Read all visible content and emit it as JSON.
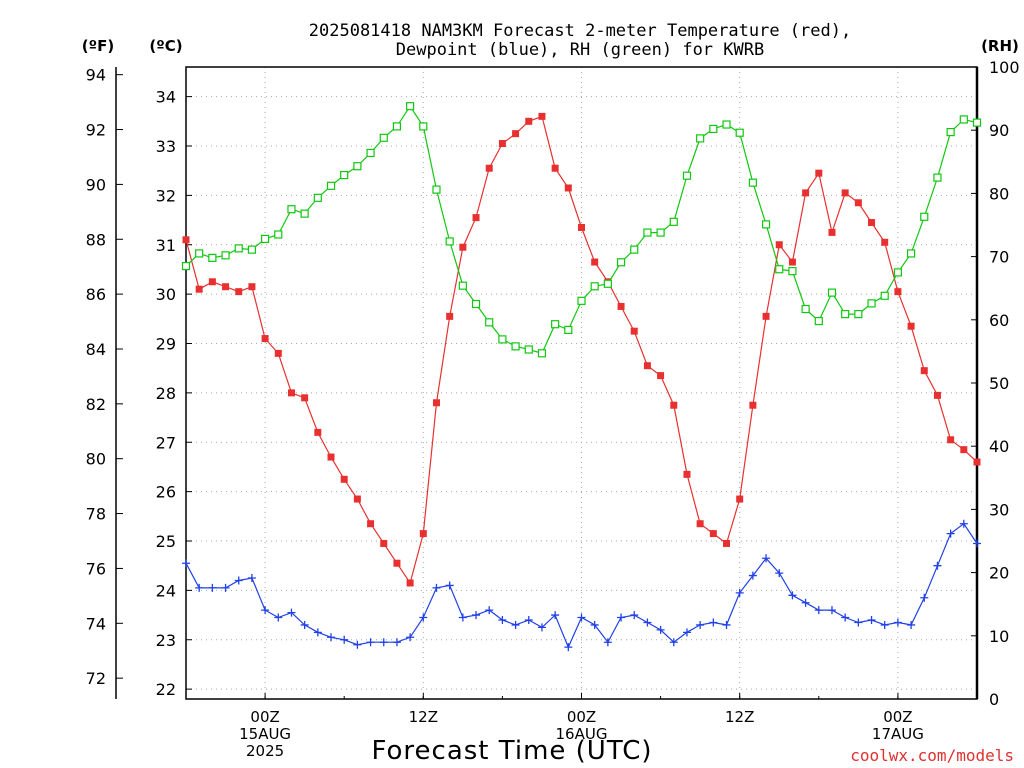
{
  "colors": {
    "temperature": "#e83030",
    "dewpoint": "#2040e8",
    "rh": "#10c810",
    "grid": "#a8a8a8",
    "credit": "#e03030"
  },
  "chart_data": {
    "type": "line",
    "title_line1": "2025081418 NAM3KM Forecast 2-meter Temperature (red),",
    "title_line2": "Dewpoint (blue), RH (green) for KWRB",
    "xlabel": "Forecast Time (UTC)",
    "credit": "coolwx.com/models",
    "unit_f": "(ºF)",
    "unit_c": "(ºC)",
    "unit_rh": "(RH)",
    "x_start": "2025-08-14 18Z",
    "x_end": "2025-08-17 06Z",
    "x_step_hours": 1,
    "grid": true,
    "left_axis_c": {
      "min": 21.8,
      "max": 34.6,
      "ticks": [
        22,
        23,
        24,
        25,
        26,
        27,
        28,
        29,
        30,
        31,
        32,
        33,
        34
      ]
    },
    "left_axis_f": {
      "ticks": [
        72,
        74,
        76,
        78,
        80,
        82,
        84,
        86,
        88,
        90,
        92,
        94
      ]
    },
    "right_axis_rh": {
      "min": 0,
      "max": 100,
      "ticks": [
        0,
        10,
        20,
        30,
        40,
        50,
        60,
        70,
        80,
        90,
        100
      ]
    },
    "x_ticks": [
      {
        "hour": 6,
        "lines": [
          "00Z",
          "15AUG",
          "2025"
        ]
      },
      {
        "hour": 18,
        "lines": [
          "12Z"
        ]
      },
      {
        "hour": 30,
        "lines": [
          "00Z",
          "16AUG"
        ]
      },
      {
        "hour": 42,
        "lines": [
          "12Z"
        ]
      },
      {
        "hour": 54,
        "lines": [
          "00Z",
          "17AUG"
        ]
      }
    ],
    "series": [
      {
        "name": "Temperature",
        "axis": "c",
        "marker": "filled-square",
        "values": [
          31.1,
          30.1,
          30.25,
          30.15,
          30.05,
          30.15,
          29.1,
          28.8,
          28.0,
          27.9,
          27.2,
          26.7,
          26.25,
          25.85,
          25.35,
          24.95,
          24.55,
          24.15,
          25.15,
          27.8,
          29.55,
          30.95,
          31.55,
          32.55,
          33.05,
          33.25,
          33.5,
          33.6,
          32.55,
          32.15,
          31.35,
          30.65,
          30.25,
          29.75,
          29.25,
          28.55,
          28.35,
          27.75,
          26.35,
          25.35,
          25.15,
          24.95,
          25.85,
          27.75,
          29.55,
          31.0,
          30.65,
          32.05,
          32.45,
          31.25,
          32.05,
          31.85,
          31.45,
          31.05,
          30.05,
          29.35,
          28.45,
          27.95,
          27.05,
          26.85,
          26.6
        ]
      },
      {
        "name": "Dewpoint",
        "axis": "c",
        "marker": "plus",
        "values": [
          24.55,
          24.05,
          24.05,
          24.05,
          24.2,
          24.25,
          23.6,
          23.45,
          23.55,
          23.3,
          23.15,
          23.05,
          23.0,
          22.9,
          22.95,
          22.95,
          22.95,
          23.05,
          23.45,
          24.05,
          24.1,
          23.45,
          23.5,
          23.6,
          23.4,
          23.3,
          23.4,
          23.25,
          23.5,
          22.85,
          23.45,
          23.3,
          22.95,
          23.45,
          23.5,
          23.35,
          23.2,
          22.95,
          23.15,
          23.3,
          23.35,
          23.3,
          23.95,
          24.3,
          24.65,
          24.35,
          23.9,
          23.75,
          23.6,
          23.6,
          23.45,
          23.35,
          23.4,
          23.3,
          23.35,
          23.3,
          23.85,
          24.5,
          25.15,
          25.35,
          24.95
        ]
      },
      {
        "name": "RH",
        "axis": "rh",
        "marker": "open-square",
        "values": [
          68.5,
          70.5,
          69.8,
          70.2,
          71.3,
          71.1,
          72.8,
          73.5,
          77.5,
          76.8,
          79.3,
          81.2,
          82.9,
          84.3,
          86.4,
          88.8,
          90.6,
          93.8,
          90.6,
          80.6,
          72.4,
          65.4,
          62.5,
          59.6,
          56.9,
          55.8,
          55.3,
          54.7,
          59.3,
          58.4,
          63.0,
          65.3,
          65.7,
          69.1,
          71.1,
          73.8,
          73.8,
          75.5,
          82.8,
          88.7,
          90.2,
          90.9,
          89.6,
          81.7,
          75.1,
          68.0,
          67.7,
          61.7,
          59.8,
          64.3,
          60.9,
          60.9,
          62.6,
          63.8,
          67.5,
          70.5,
          76.3,
          82.5,
          89.7,
          91.7,
          91.2
        ]
      }
    ]
  }
}
